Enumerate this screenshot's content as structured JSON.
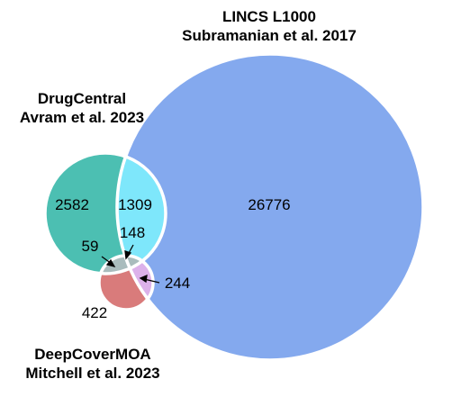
{
  "sets": {
    "lincs": {
      "name_line1": "LINCS L1000",
      "name_line2": "Subramanian et al. 2017",
      "color": "#84a9ee"
    },
    "drugcentral": {
      "name_line1": "DrugCentral",
      "name_line2": "Avram et al. 2023",
      "color": "#4cbfb2"
    },
    "deepcovermoa": {
      "name_line1": "DeepCoverMOA",
      "name_line2": "Mitchell et al. 2023",
      "color": "#d97b7b"
    }
  },
  "regions": {
    "lincs_only": "26776",
    "drugcentral_only": "2582",
    "drugcentral_lincs": "1309",
    "drugcentral_deepcovermoa": "59",
    "all_three": "148",
    "deepcovermoa_lincs": "244",
    "deepcovermoa_only": "422"
  },
  "colors": {
    "drugcentral_lincs": "#7ee7fb",
    "deepcovermoa_lincs": "#dcb1ea",
    "overlap_center": "#a9bcbd",
    "stroke": "#ffffff"
  }
}
